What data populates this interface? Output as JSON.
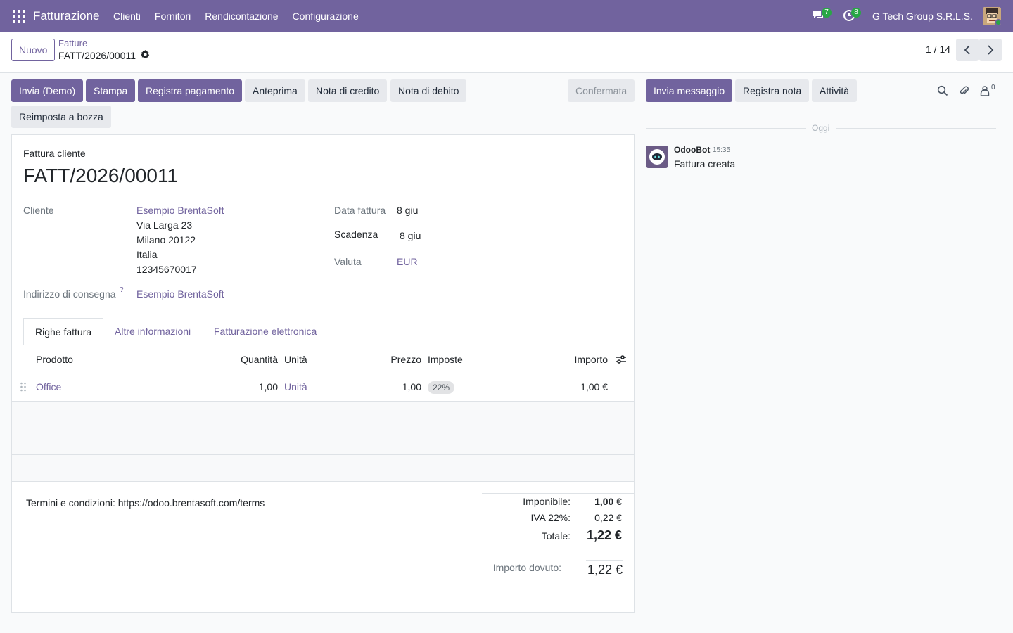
{
  "navbar": {
    "app_name": "Fatturazione",
    "menu": [
      "Clienti",
      "Fornitori",
      "Rendicontazione",
      "Configurazione"
    ],
    "messages_count": "7",
    "activities_count": "8",
    "company": "G Tech Group S.R.L.S."
  },
  "control_panel": {
    "new_label": "Nuovo",
    "breadcrumb_parent": "Fatture",
    "breadcrumb_current": "FATT/2026/00011",
    "pager": "1 / 14"
  },
  "actions": {
    "send": "Invia (Demo)",
    "print": "Stampa",
    "register_payment": "Registra pagamento",
    "preview": "Anteprima",
    "credit_note": "Nota di credito",
    "debit_note": "Nota di debito",
    "reset_draft": "Reimposta a bozza",
    "status": "Confermata"
  },
  "form": {
    "type_label": "Fattura cliente",
    "number": "FATT/2026/00011",
    "customer_label": "Cliente",
    "customer_name": "Esempio BrentaSoft",
    "address": [
      "Via Larga 23",
      "Milano 20122",
      "Italia",
      "12345670017"
    ],
    "delivery_label": "Indirizzo di consegna",
    "delivery_help": "?",
    "delivery_value": "Esempio BrentaSoft",
    "invoice_date_label": "Data fattura",
    "invoice_date": "8 giu",
    "due_label": "Scadenza",
    "due_date": "8 giu",
    "currency_label": "Valuta",
    "currency": "EUR"
  },
  "tabs": [
    "Righe fattura",
    "Altre informazioni",
    "Fatturazione elettronica"
  ],
  "lines_table": {
    "headers": {
      "product": "Prodotto",
      "quantity": "Quantità",
      "unit": "Unità",
      "price": "Prezzo",
      "taxes": "Imposte",
      "amount": "Importo"
    },
    "rows": [
      {
        "product": "Office",
        "quantity": "1,00",
        "unit": "Unità",
        "price": "1,00",
        "tax": "22%",
        "amount": "1,00 €"
      }
    ]
  },
  "terms": "Termini e condizioni: https://odoo.brentasoft.com/terms",
  "totals": {
    "untaxed_label": "Imponibile:",
    "untaxed": "1,00 €",
    "vat_label": "IVA 22%:",
    "vat": "0,22 €",
    "total_label": "Totale:",
    "total": "1,22 €",
    "due_label": "Importo dovuto:",
    "due": "1,22 €"
  },
  "chatter": {
    "send_message": "Invia messaggio",
    "log_note": "Registra nota",
    "activities": "Attività",
    "followers_count": "0",
    "date_separator": "Oggi",
    "message": {
      "author": "OdooBot",
      "time": "15:35",
      "body": "Fattura creata"
    }
  }
}
